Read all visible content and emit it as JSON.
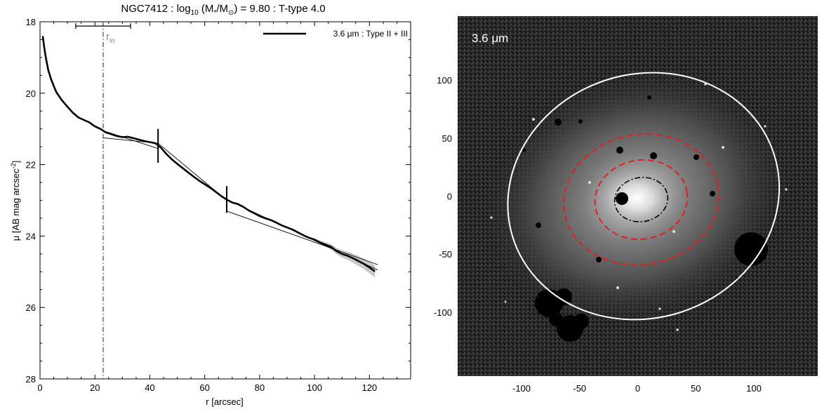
{
  "title": {
    "prefix": "NGC7412 : log",
    "sub": "10",
    "mid": " (M",
    "star": "*",
    "mid2": "/M",
    "sun": "⊙",
    "suffix": ") = 9.80 : T-type 4.0"
  },
  "chart_data": [
    {
      "type": "line",
      "xlabel": "r [arcsec]",
      "ylabel_main": "μ [AB mag arcsec",
      "ylabel_sup": "-2",
      "ylabel_close": "]",
      "xlim": [
        0,
        135
      ],
      "ylim": [
        28,
        18
      ],
      "y_inverted": true,
      "xticks": [
        0,
        20,
        40,
        60,
        80,
        100,
        120
      ],
      "yticks": [
        18,
        20,
        22,
        24,
        26,
        28
      ],
      "legend": {
        "label": "3.6 μm : Type II + III",
        "placement": "top-right"
      },
      "series": [
        {
          "name": "3.6 μm : Type II + III",
          "x": [
            1,
            1.5,
            2,
            3,
            4,
            5,
            6,
            8,
            10,
            12,
            14,
            16,
            18,
            20,
            22,
            24,
            26,
            28,
            30,
            32,
            34,
            36,
            38,
            40,
            42,
            44,
            46,
            48,
            50,
            52,
            54,
            56,
            58,
            60,
            62,
            64,
            66,
            68,
            70,
            72,
            74,
            76,
            78,
            80,
            82,
            84,
            86,
            88,
            90,
            92,
            94,
            96,
            98,
            100,
            102,
            104,
            106,
            108,
            110,
            112,
            114,
            116,
            118,
            120,
            122
          ],
          "y": [
            18.4,
            18.7,
            18.95,
            19.35,
            19.6,
            19.8,
            19.98,
            20.2,
            20.38,
            20.55,
            20.68,
            20.75,
            20.82,
            20.93,
            21.0,
            21.1,
            21.15,
            21.2,
            21.23,
            21.22,
            21.26,
            21.3,
            21.34,
            21.37,
            21.4,
            21.52,
            21.7,
            21.85,
            21.98,
            22.1,
            22.22,
            22.34,
            22.45,
            22.55,
            22.65,
            22.76,
            22.88,
            22.98,
            23.06,
            23.1,
            23.18,
            23.28,
            23.36,
            23.44,
            23.5,
            23.55,
            23.62,
            23.7,
            23.76,
            23.82,
            23.9,
            23.98,
            24.05,
            24.1,
            24.18,
            24.24,
            24.3,
            24.42,
            24.5,
            24.55,
            24.62,
            24.7,
            24.78,
            24.88,
            24.99
          ]
        }
      ],
      "fit_lines": [
        {
          "x": [
            23,
            43
          ],
          "y": [
            21.25,
            21.4
          ]
        },
        {
          "x": [
            23,
            43
          ],
          "y": [
            21.05,
            21.55
          ]
        },
        {
          "x": [
            43,
            68
          ],
          "y": [
            21.4,
            23.0
          ]
        },
        {
          "x": [
            68,
            123
          ],
          "y": [
            22.98,
            24.95
          ]
        },
        {
          "x": [
            68,
            123
          ],
          "y": [
            23.3,
            24.8
          ]
        }
      ],
      "breaks": [
        {
          "x": 43,
          "y_low": 21.0,
          "y_high": 21.95
        },
        {
          "x": 68,
          "y_low": 22.6,
          "y_high": 23.35
        }
      ],
      "r_in": {
        "x": 23,
        "label_main": "r",
        "label_sub": "in",
        "bar_x": [
          13,
          33
        ],
        "bar_y": 18.12
      },
      "error_band": {
        "x_start": 100,
        "x_end": 123
      }
    },
    {
      "type": "image",
      "label": "3.6 μm",
      "xlim": [
        -155,
        155
      ],
      "ylim": [
        -155,
        155
      ],
      "xticks": [
        -100,
        -50,
        0,
        50,
        100
      ],
      "yticks": [
        -100,
        -50,
        0,
        50,
        100
      ],
      "colors": {
        "outer": "#ffffff",
        "dashed": "#e02020",
        "inner": "#000000"
      },
      "ellipses": [
        {
          "kind": "outer",
          "cx": 5,
          "cy": 0,
          "rx": 118,
          "ry": 105,
          "angle": -18
        },
        {
          "kind": "dashed",
          "cx": 3,
          "cy": -3,
          "rx": 67,
          "ry": 56,
          "angle": -10
        },
        {
          "kind": "dashed",
          "cx": 3,
          "cy": -3,
          "rx": 40,
          "ry": 34,
          "angle": -10
        },
        {
          "kind": "inner",
          "cx": 3,
          "cy": -3,
          "rx": 23,
          "ry": 19,
          "angle": -10
        }
      ]
    }
  ]
}
